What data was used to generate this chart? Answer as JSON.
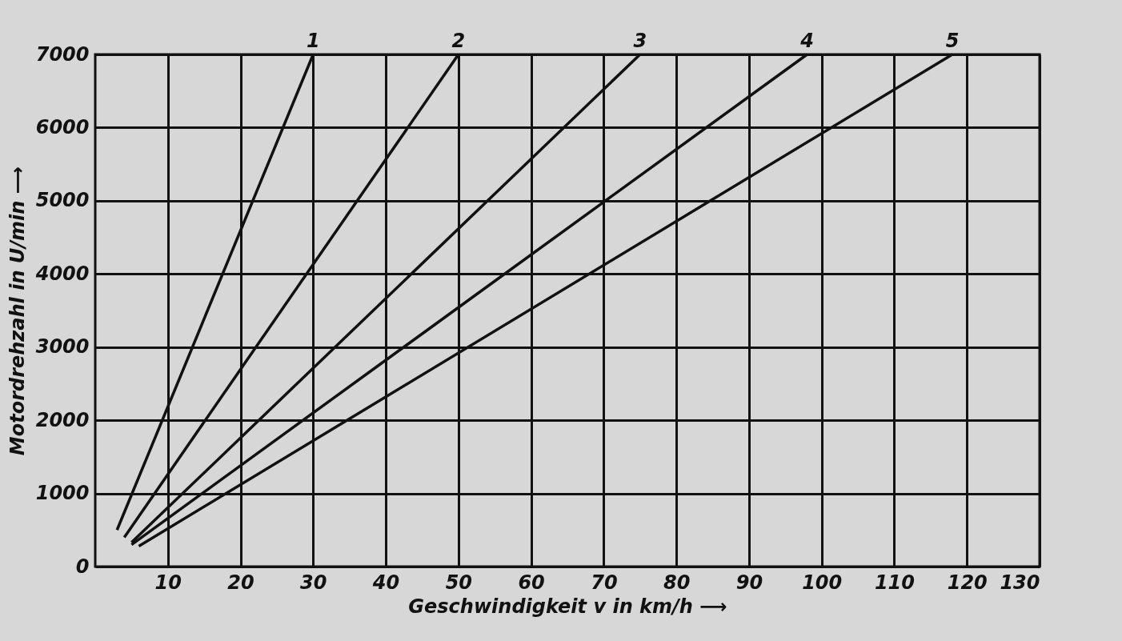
{
  "chart_data": {
    "type": "line",
    "xlabel": "Geschwindigkeit v in km/h ⟶",
    "ylabel": "Motordrehzahl in U/min ⟶",
    "xlim": [
      0,
      130
    ],
    "ylim": [
      0,
      7000
    ],
    "xticks": [
      10,
      20,
      30,
      40,
      50,
      60,
      70,
      80,
      90,
      100,
      110,
      120,
      130
    ],
    "yticks": [
      0,
      1000,
      2000,
      3000,
      4000,
      5000,
      6000,
      7000
    ],
    "grid": true,
    "legend": false,
    "marker": "none",
    "line_style": "solid",
    "series": [
      {
        "name": "1",
        "color": "#111111",
        "x": [
          3,
          30
        ],
        "values": [
          500,
          7000
        ]
      },
      {
        "name": "2",
        "color": "#111111",
        "x": [
          4,
          50
        ],
        "values": [
          400,
          7000
        ]
      },
      {
        "name": "3",
        "color": "#111111",
        "x": [
          5,
          75
        ],
        "values": [
          330,
          7000
        ]
      },
      {
        "name": "4",
        "color": "#111111",
        "x": [
          5,
          98
        ],
        "values": [
          300,
          7000
        ]
      },
      {
        "name": "5",
        "color": "#111111",
        "x": [
          6,
          118
        ],
        "values": [
          280,
          7000
        ]
      }
    ]
  }
}
